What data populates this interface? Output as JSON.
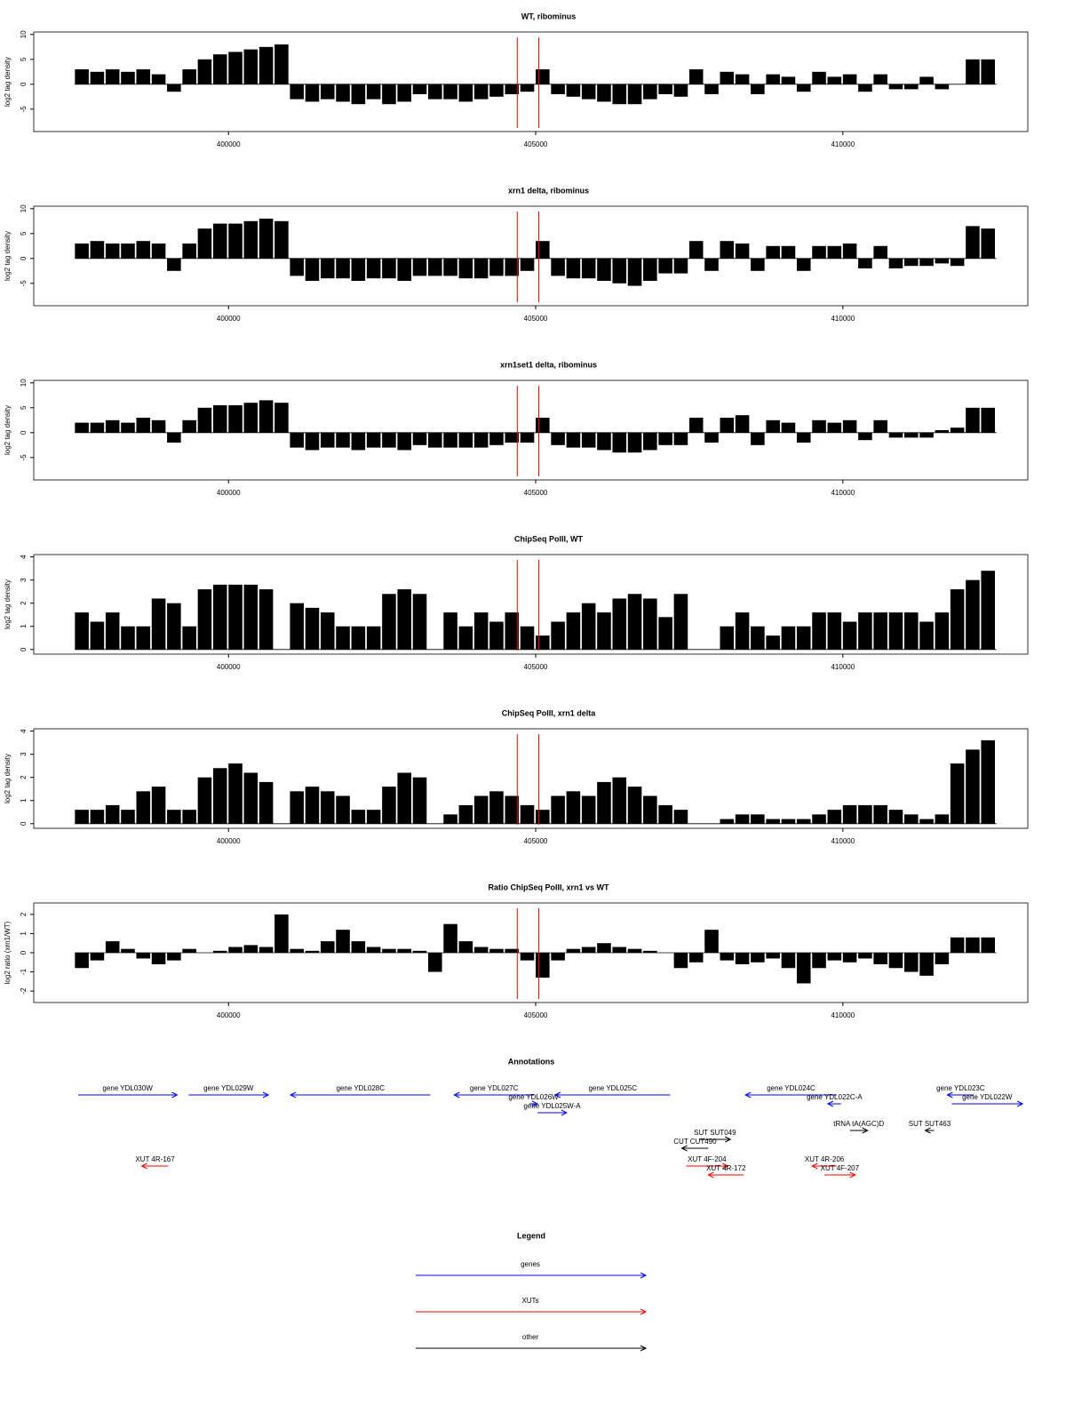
{
  "chart_data": [
    {
      "type": "bar",
      "title": "WT, ribominus",
      "y_label": "log2 tag density",
      "color": "#000000",
      "marker_color": "#ff0000",
      "markers": [
        404700,
        405050
      ],
      "xlim": [
        396830,
        413010
      ],
      "xticks": [
        400000,
        405000,
        410000
      ],
      "ylim": [
        -9.5,
        10.5
      ],
      "yticks": [
        -5,
        0,
        5,
        10
      ],
      "x": [
        397500,
        397750,
        398000,
        398250,
        398500,
        398750,
        399000,
        399250,
        399500,
        399750,
        400000,
        400250,
        400500,
        400750,
        401000,
        401250,
        401500,
        401750,
        402000,
        402250,
        402500,
        402750,
        403000,
        403250,
        403500,
        403750,
        404000,
        404250,
        404500,
        404750,
        405000,
        405250,
        405500,
        405750,
        406000,
        406250,
        406500,
        406750,
        407000,
        407250,
        407500,
        407750,
        408000,
        408250,
        408500,
        408750,
        409000,
        409250,
        409500,
        409750,
        410000,
        410250,
        410500,
        410750,
        411000,
        411250,
        411500,
        411750,
        412000,
        412250
      ],
      "values": [
        3,
        2.5,
        3,
        2.5,
        3,
        2,
        -1.5,
        3,
        5,
        6,
        6.5,
        7,
        7.5,
        8,
        -3,
        -3.5,
        -3,
        -3.5,
        -4,
        -3,
        -4,
        -3.5,
        -2,
        -3,
        -3,
        -3.5,
        -3,
        -2.5,
        -2,
        -1.5,
        3,
        -2,
        -2.5,
        -3,
        -3.5,
        -4,
        -4,
        -3,
        -2,
        -2.5,
        3,
        -2,
        2.5,
        2,
        -2,
        2,
        1.5,
        -1.5,
        2.5,
        1.5,
        2,
        -1.5,
        2,
        -1,
        -1,
        1.5,
        -1,
        0,
        5,
        5
      ]
    },
    {
      "type": "bar",
      "title": "xrn1 delta, ribominus",
      "y_label": "log2 tag density",
      "color": "#000000",
      "marker_color": "#ff0000",
      "markers": [
        404700,
        405050
      ],
      "xlim": [
        396830,
        413010
      ],
      "xticks": [
        400000,
        405000,
        410000
      ],
      "ylim": [
        -9.5,
        10.5
      ],
      "yticks": [
        -5,
        0,
        5,
        10
      ],
      "x": [
        397500,
        397750,
        398000,
        398250,
        398500,
        398750,
        399000,
        399250,
        399500,
        399750,
        400000,
        400250,
        400500,
        400750,
        401000,
        401250,
        401500,
        401750,
        402000,
        402250,
        402500,
        402750,
        403000,
        403250,
        403500,
        403750,
        404000,
        404250,
        404500,
        404750,
        405000,
        405250,
        405500,
        405750,
        406000,
        406250,
        406500,
        406750,
        407000,
        407250,
        407500,
        407750,
        408000,
        408250,
        408500,
        408750,
        409000,
        409250,
        409500,
        409750,
        410000,
        410250,
        410500,
        410750,
        411000,
        411250,
        411500,
        411750,
        412000,
        412250
      ],
      "values": [
        3,
        3.5,
        3,
        3,
        3.5,
        3,
        -2.5,
        3,
        6,
        7,
        7,
        7.5,
        8,
        7.5,
        -3.5,
        -4.5,
        -4,
        -4,
        -4.5,
        -4,
        -4,
        -4.5,
        -3.5,
        -3.5,
        -3.5,
        -4,
        -4,
        -3.5,
        -3.5,
        -2.5,
        3.5,
        -3.5,
        -4,
        -4,
        -4.5,
        -5,
        -5.5,
        -4.5,
        -3,
        -3,
        3.5,
        -2.5,
        3.5,
        3,
        -2.5,
        2.5,
        2.5,
        -2.5,
        2.5,
        2.5,
        3,
        -2,
        2.5,
        -2,
        -1.5,
        -1.5,
        -1,
        -1.5,
        6.5,
        6
      ]
    },
    {
      "type": "bar",
      "title": "xrn1set1 delta, ribominus",
      "y_label": "log2 tag density",
      "color": "#000000",
      "marker_color": "#ff0000",
      "markers": [
        404700,
        405050
      ],
      "xlim": [
        396830,
        413010
      ],
      "xticks": [
        400000,
        405000,
        410000
      ],
      "ylim": [
        -9.5,
        10.5
      ],
      "yticks": [
        -5,
        0,
        5,
        10
      ],
      "x": [
        397500,
        397750,
        398000,
        398250,
        398500,
        398750,
        399000,
        399250,
        399500,
        399750,
        400000,
        400250,
        400500,
        400750,
        401000,
        401250,
        401500,
        401750,
        402000,
        402250,
        402500,
        402750,
        403000,
        403250,
        403500,
        403750,
        404000,
        404250,
        404500,
        404750,
        405000,
        405250,
        405500,
        405750,
        406000,
        406250,
        406500,
        406750,
        407000,
        407250,
        407500,
        407750,
        408000,
        408250,
        408500,
        408750,
        409000,
        409250,
        409500,
        409750,
        410000,
        410250,
        410500,
        410750,
        411000,
        411250,
        411500,
        411750,
        412000,
        412250
      ],
      "values": [
        2,
        2,
        2.5,
        2,
        3,
        2.5,
        -2,
        2.5,
        5,
        5.5,
        5.5,
        6,
        6.5,
        6,
        -3,
        -3.5,
        -3,
        -3,
        -3.5,
        -3,
        -3,
        -3.5,
        -2.5,
        -3,
        -3,
        -3,
        -3,
        -2.5,
        -2,
        -2,
        3,
        -2.5,
        -3,
        -3,
        -3.5,
        -4,
        -4,
        -3.5,
        -2.5,
        -2.5,
        3,
        -2,
        3,
        3.5,
        -2.5,
        2.5,
        2,
        -2,
        2.5,
        2,
        2.5,
        -1.5,
        2.5,
        -1,
        -1,
        -1,
        0.5,
        1,
        5,
        5
      ]
    },
    {
      "type": "bar",
      "title": "ChipSeq PolII, WT",
      "y_label": "log2 tag density",
      "color": "#000000",
      "marker_color": "#ff0000",
      "markers": [
        404700,
        405050
      ],
      "xlim": [
        396830,
        413010
      ],
      "xticks": [
        400000,
        405000,
        410000
      ],
      "ylim": [
        -0.2,
        4.1
      ],
      "yticks": [
        0,
        1,
        2,
        3,
        4
      ],
      "x": [
        397500,
        397750,
        398000,
        398250,
        398500,
        398750,
        399000,
        399250,
        399500,
        399750,
        400000,
        400250,
        400500,
        400750,
        401000,
        401250,
        401500,
        401750,
        402000,
        402250,
        402500,
        402750,
        403000,
        403250,
        403500,
        403750,
        404000,
        404250,
        404500,
        404750,
        405000,
        405250,
        405500,
        405750,
        406000,
        406250,
        406500,
        406750,
        407000,
        407250,
        407500,
        407750,
        408000,
        408250,
        408500,
        408750,
        409000,
        409250,
        409500,
        409750,
        410000,
        410250,
        410500,
        410750,
        411000,
        411250,
        411500,
        411750,
        412000,
        412250
      ],
      "values": [
        1.6,
        1.2,
        1.6,
        1,
        1,
        2.2,
        2,
        1,
        2.6,
        2.8,
        2.8,
        2.8,
        2.6,
        0,
        2,
        1.8,
        1.6,
        1,
        1,
        1,
        2.4,
        2.6,
        2.4,
        0,
        1.6,
        1,
        1.6,
        1.2,
        1.6,
        1,
        0.6,
        1.2,
        1.6,
        2,
        1.6,
        2.2,
        2.4,
        2.2,
        1.4,
        2.4,
        0,
        0,
        1,
        1.6,
        1,
        0.6,
        1,
        1,
        1.6,
        1.6,
        1.2,
        1.6,
        1.6,
        1.6,
        1.6,
        1.2,
        1.6,
        2.6,
        3,
        3.4
      ]
    },
    {
      "type": "bar",
      "title": "ChipSeq PolII, xrn1 delta",
      "y_label": "log2 tag density",
      "color": "#000000",
      "marker_color": "#ff0000",
      "markers": [
        404700,
        405050
      ],
      "xlim": [
        396830,
        413010
      ],
      "xticks": [
        400000,
        405000,
        410000
      ],
      "ylim": [
        -0.2,
        4.1
      ],
      "yticks": [
        0,
        1,
        2,
        3,
        4
      ],
      "x": [
        397500,
        397750,
        398000,
        398250,
        398500,
        398750,
        399000,
        399250,
        399500,
        399750,
        400000,
        400250,
        400500,
        400750,
        401000,
        401250,
        401500,
        401750,
        402000,
        402250,
        402500,
        402750,
        403000,
        403250,
        403500,
        403750,
        404000,
        404250,
        404500,
        404750,
        405000,
        405250,
        405500,
        405750,
        406000,
        406250,
        406500,
        406750,
        407000,
        407250,
        407500,
        407750,
        408000,
        408250,
        408500,
        408750,
        409000,
        409250,
        409500,
        409750,
        410000,
        410250,
        410500,
        410750,
        411000,
        411250,
        411500,
        411750,
        412000,
        412250
      ],
      "values": [
        0.6,
        0.6,
        0.8,
        0.6,
        1.4,
        1.6,
        0.6,
        0.6,
        2,
        2.4,
        2.6,
        2.2,
        1.8,
        0,
        1.4,
        1.6,
        1.4,
        1.2,
        0.6,
        0.6,
        1.6,
        2.2,
        2,
        0,
        0.4,
        0.8,
        1.2,
        1.4,
        1.2,
        0.8,
        0.6,
        1.2,
        1.4,
        1.2,
        1.8,
        2,
        1.6,
        1.2,
        0.8,
        0.6,
        0,
        0,
        0.2,
        0.4,
        0.4,
        0.2,
        0.2,
        0.2,
        0.4,
        0.6,
        0.8,
        0.8,
        0.8,
        0.6,
        0.4,
        0.2,
        0.4,
        2.6,
        3.2,
        3.6
      ]
    },
    {
      "type": "bar",
      "title": "Ratio ChipSeq PolII, xrn1 vs WT",
      "y_label": "log2 ratio (xrn1/WT)",
      "color": "#000000",
      "marker_color": "#ff0000",
      "markers": [
        404700,
        405050
      ],
      "xlim": [
        396830,
        413010
      ],
      "xticks": [
        400000,
        405000,
        410000
      ],
      "ylim": [
        -2.6,
        2.6
      ],
      "yticks": [
        -2,
        -1,
        0,
        1,
        2
      ],
      "x": [
        397500,
        397750,
        398000,
        398250,
        398500,
        398750,
        399000,
        399250,
        399500,
        399750,
        400000,
        400250,
        400500,
        400750,
        401000,
        401250,
        401500,
        401750,
        402000,
        402250,
        402500,
        402750,
        403000,
        403250,
        403500,
        403750,
        404000,
        404250,
        404500,
        404750,
        405000,
        405250,
        405500,
        405750,
        406000,
        406250,
        406500,
        406750,
        407000,
        407250,
        407500,
        407750,
        408000,
        408250,
        408500,
        408750,
        409000,
        409250,
        409500,
        409750,
        410000,
        410250,
        410500,
        410750,
        411000,
        411250,
        411500,
        411750,
        412000,
        412250
      ],
      "values": [
        -0.8,
        -0.4,
        0.6,
        0.2,
        -0.3,
        -0.6,
        -0.4,
        0.2,
        0,
        0.1,
        0.3,
        0.4,
        0.3,
        2,
        0.2,
        0.1,
        0.6,
        1.2,
        0.6,
        0.3,
        0.2,
        0.2,
        0.1,
        -1,
        1.5,
        0.6,
        0.3,
        0.2,
        0.2,
        -0.4,
        -1.3,
        -0.4,
        0.2,
        0.3,
        0.5,
        0.3,
        0.2,
        0.1,
        0,
        -0.8,
        -0.5,
        1.2,
        -0.4,
        -0.6,
        -0.5,
        -0.3,
        -0.8,
        -1.6,
        -0.8,
        -0.4,
        -0.5,
        -0.3,
        -0.6,
        -0.8,
        -1,
        -1.2,
        -0.6,
        0.8,
        0.8,
        0.8
      ]
    }
  ],
  "annotations": {
    "title": "Annotations",
    "xlim": [
      396830,
      413010
    ],
    "features": [
      {
        "label": "gene YDL030W",
        "start": 397550,
        "end": 399164,
        "strand": "+",
        "color": "#0000ff"
      },
      {
        "label": "gene YDL029W",
        "start": 399352,
        "end": 400648,
        "strand": "+",
        "color": "#0000ff"
      },
      {
        "label": "gene YDL028C",
        "start": 401009,
        "end": 403285,
        "strand": "-",
        "color": "#0000ff"
      },
      {
        "label": "gene YDL027C",
        "start": 403674,
        "end": 404971,
        "strand": "-",
        "color": "#0000ff"
      },
      {
        "label": "gene YDL026W",
        "start": 404899,
        "end": 405029,
        "strand": "+",
        "color": "#0000ff"
      },
      {
        "label": "gene YDL025W-A",
        "start": 405029,
        "end": 405504,
        "strand": "+",
        "color": "#0000ff"
      },
      {
        "label": "gene YDL025C",
        "start": 405317,
        "end": 407190,
        "strand": "-",
        "color": "#0000ff"
      },
      {
        "label": "gene YDL024C",
        "start": 408415,
        "end": 409899,
        "strand": "-",
        "color": "#0000ff"
      },
      {
        "label": "gene YDL022C-A",
        "start": 409755,
        "end": 409971,
        "strand": "-",
        "color": "#0000ff"
      },
      {
        "label": "gene YDL023C",
        "start": 411700,
        "end": 412133,
        "strand": "-",
        "color": "#0000ff"
      },
      {
        "label": "gene YDL022W",
        "start": 411772,
        "end": 412925,
        "strand": "+",
        "color": "#0000ff"
      },
      {
        "label": "tRNA tA(AGC)D",
        "start": 410115,
        "end": 410403,
        "strand": "+",
        "color": "#000000"
      },
      {
        "label": "SUT SUT049",
        "start": 407666,
        "end": 408170,
        "strand": "+",
        "color": "#000000"
      },
      {
        "label": "SUT SUT463",
        "start": 411340,
        "end": 411484,
        "strand": "-",
        "color": "#000000"
      },
      {
        "label": "CUT CUT490",
        "start": 407378,
        "end": 407810,
        "strand": "-",
        "color": "#000000"
      },
      {
        "label": "XUT 4R-167",
        "start": 398588,
        "end": 399020,
        "strand": "-",
        "color": "#ff0000"
      },
      {
        "label": "XUT 4F-204",
        "start": 407450,
        "end": 408127,
        "strand": "+",
        "color": "#ff0000"
      },
      {
        "label": "XUT 4R-172",
        "start": 407810,
        "end": 408386,
        "strand": "-",
        "color": "#ff0000"
      },
      {
        "label": "XUT 4R-206",
        "start": 409500,
        "end": 409900,
        "strand": "-",
        "color": "#ff0000"
      },
      {
        "label": "XUT 4F-207",
        "start": 409700,
        "end": 410200,
        "strand": "+",
        "color": "#ff0000"
      }
    ]
  },
  "legend": {
    "title": "Legend",
    "items": [
      {
        "label": "genes",
        "color": "#0000ff"
      },
      {
        "label": "XUTs",
        "color": "#ff0000"
      },
      {
        "label": "other",
        "color": "#000000"
      }
    ]
  }
}
